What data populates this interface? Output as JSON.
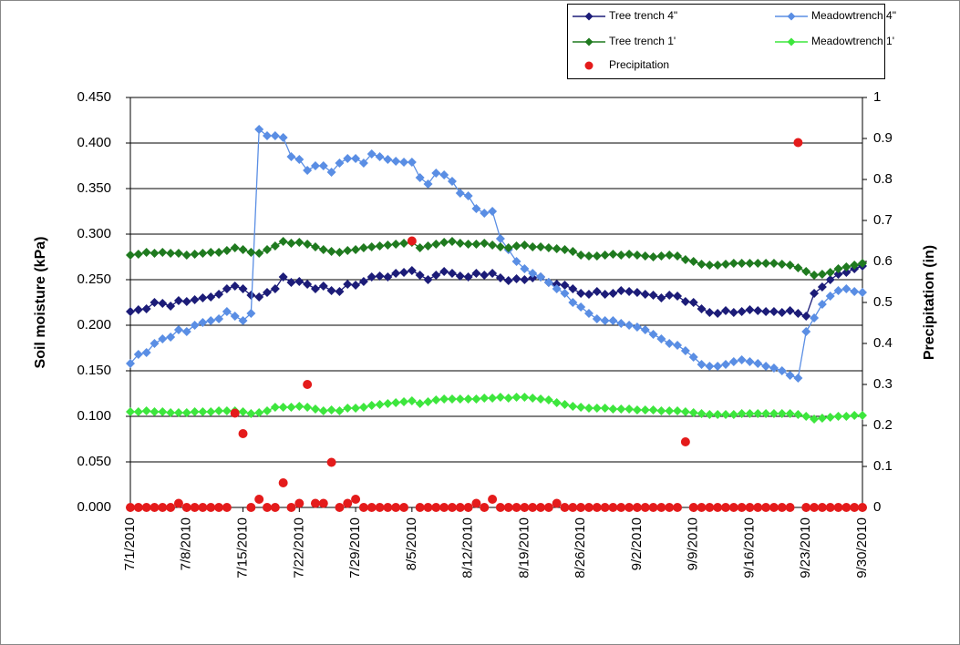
{
  "chart_data": {
    "type": "line",
    "y_label": "Soil moisture (kPa)",
    "y2_label": "Precipitation (in)",
    "categories": [
      "7/1/2010",
      null,
      null,
      null,
      null,
      null,
      null,
      "7/8/2010",
      null,
      null,
      null,
      null,
      null,
      null,
      "7/15/2010",
      null,
      null,
      null,
      null,
      null,
      null,
      "7/22/2010",
      null,
      null,
      null,
      null,
      null,
      null,
      "7/29/2010",
      null,
      null,
      null,
      null,
      null,
      null,
      "8/5/2010",
      null,
      null,
      null,
      null,
      null,
      null,
      "8/12/2010",
      null,
      null,
      null,
      null,
      null,
      null,
      "8/19/2010",
      null,
      null,
      null,
      null,
      null,
      null,
      "8/26/2010",
      null,
      null,
      null,
      null,
      null,
      null,
      "9/2/2010",
      null,
      null,
      null,
      null,
      null,
      null,
      "9/9/2010",
      null,
      null,
      null,
      null,
      null,
      null,
      "9/16/2010",
      null,
      null,
      null,
      null,
      null,
      null,
      "9/23/2010",
      null,
      null,
      null,
      null,
      null,
      null,
      "9/30/2010"
    ],
    "ylim": [
      0,
      0.45
    ],
    "yticks": [
      {
        "value": 0,
        "label": "0.000"
      },
      {
        "value": 0.05,
        "label": "0.050"
      },
      {
        "value": 0.1,
        "label": "0.100"
      },
      {
        "value": 0.15,
        "label": "0.150"
      },
      {
        "value": 0.2,
        "label": "0.200"
      },
      {
        "value": 0.25,
        "label": "0.250"
      },
      {
        "value": 0.3,
        "label": "0.300"
      },
      {
        "value": 0.35,
        "label": "0.350"
      },
      {
        "value": 0.4,
        "label": "0.400"
      },
      {
        "value": 0.45,
        "label": "0.450"
      }
    ],
    "y2lim": [
      0,
      1
    ],
    "y2ticks": [
      0,
      0.1,
      0.2,
      0.3,
      0.4,
      0.5,
      0.6,
      0.7,
      0.8,
      0.9,
      1
    ],
    "grid": true,
    "legend": "top-right",
    "series": [
      {
        "name": "Tree trench 4\"",
        "color": "#1c1c78",
        "mode": "lines+markers",
        "values": [
          0.215,
          0.217,
          0.218,
          0.225,
          0.224,
          0.221,
          0.227,
          0.226,
          0.228,
          0.23,
          0.231,
          0.234,
          0.24,
          0.243,
          0.24,
          0.233,
          0.231,
          0.236,
          0.24,
          0.253,
          0.247,
          0.248,
          0.245,
          0.24,
          0.243,
          0.238,
          0.237,
          0.245,
          0.244,
          0.248,
          0.253,
          0.254,
          0.253,
          0.257,
          0.258,
          0.26,
          0.255,
          0.25,
          0.255,
          0.259,
          0.257,
          0.254,
          0.253,
          0.257,
          0.255,
          0.257,
          0.252,
          0.249,
          0.251,
          0.25,
          0.252,
          0.253,
          0.247,
          0.245,
          0.244,
          0.24,
          0.235,
          0.234,
          0.237,
          0.234,
          0.235,
          0.238,
          0.237,
          0.236,
          0.234,
          0.233,
          0.23,
          0.233,
          0.232,
          0.226,
          0.225,
          0.218,
          0.214,
          0.213,
          0.216,
          0.214,
          0.215,
          0.217,
          0.216,
          0.215,
          0.215,
          0.214,
          0.216,
          0.213,
          0.21,
          0.235,
          0.242,
          0.25,
          0.256,
          0.258,
          0.262,
          0.265
        ]
      },
      {
        "name": "Meadowtrench 4\"",
        "color": "#5a8ee4",
        "mode": "lines+markers",
        "values": [
          0.158,
          0.168,
          0.17,
          0.18,
          0.185,
          0.187,
          0.195,
          0.193,
          0.2,
          0.203,
          0.205,
          0.207,
          0.215,
          0.21,
          0.205,
          0.213,
          0.415,
          0.408,
          0.408,
          0.406,
          0.385,
          0.382,
          0.37,
          0.375,
          0.375,
          0.368,
          0.378,
          0.383,
          0.383,
          0.378,
          0.388,
          0.385,
          0.382,
          0.38,
          0.379,
          0.379,
          0.362,
          0.355,
          0.367,
          0.365,
          0.358,
          0.345,
          0.342,
          0.328,
          0.323,
          0.325,
          0.295,
          0.283,
          0.27,
          0.262,
          0.257,
          0.253,
          0.247,
          0.24,
          0.235,
          0.225,
          0.22,
          0.213,
          0.207,
          0.205,
          0.205,
          0.202,
          0.2,
          0.198,
          0.195,
          0.19,
          0.185,
          0.18,
          0.178,
          0.172,
          0.165,
          0.157,
          0.155,
          0.155,
          0.157,
          0.16,
          0.162,
          0.16,
          0.158,
          0.155,
          0.153,
          0.15,
          0.145,
          0.142,
          0.193,
          0.208,
          0.223,
          0.232,
          0.238,
          0.24,
          0.237,
          0.236
        ]
      },
      {
        "name": "Tree trench 1'",
        "color": "#1f7a1f",
        "mode": "lines+markers",
        "values": [
          0.277,
          0.278,
          0.28,
          0.279,
          0.28,
          0.279,
          0.279,
          0.277,
          0.278,
          0.279,
          0.28,
          0.28,
          0.282,
          0.285,
          0.283,
          0.28,
          0.279,
          0.283,
          0.287,
          0.292,
          0.29,
          0.291,
          0.289,
          0.286,
          0.283,
          0.281,
          0.28,
          0.282,
          0.283,
          0.285,
          0.286,
          0.287,
          0.288,
          0.289,
          0.29,
          0.291,
          0.285,
          0.287,
          0.289,
          0.291,
          0.292,
          0.29,
          0.289,
          0.289,
          0.29,
          0.288,
          0.286,
          0.285,
          0.287,
          0.288,
          0.286,
          0.286,
          0.285,
          0.284,
          0.283,
          0.281,
          0.277,
          0.276,
          0.276,
          0.277,
          0.278,
          0.277,
          0.278,
          0.277,
          0.276,
          0.275,
          0.276,
          0.277,
          0.276,
          0.272,
          0.27,
          0.267,
          0.266,
          0.266,
          0.267,
          0.268,
          0.268,
          0.268,
          0.268,
          0.268,
          0.268,
          0.267,
          0.266,
          0.263,
          0.259,
          0.255,
          0.256,
          0.258,
          0.262,
          0.264,
          0.266,
          0.268
        ]
      },
      {
        "name": "Meadowtrench 1'",
        "color": "#3de63d",
        "mode": "lines+markers",
        "values": [
          0.105,
          0.105,
          0.106,
          0.105,
          0.105,
          0.104,
          0.104,
          0.104,
          0.105,
          0.105,
          0.105,
          0.106,
          0.106,
          0.106,
          0.105,
          0.103,
          0.104,
          0.106,
          0.11,
          0.11,
          0.11,
          0.111,
          0.11,
          0.108,
          0.106,
          0.107,
          0.106,
          0.109,
          0.109,
          0.11,
          0.112,
          0.113,
          0.114,
          0.115,
          0.116,
          0.117,
          0.114,
          0.116,
          0.118,
          0.119,
          0.119,
          0.119,
          0.119,
          0.119,
          0.12,
          0.12,
          0.121,
          0.12,
          0.121,
          0.121,
          0.12,
          0.119,
          0.118,
          0.115,
          0.113,
          0.111,
          0.11,
          0.109,
          0.109,
          0.109,
          0.108,
          0.108,
          0.108,
          0.107,
          0.107,
          0.107,
          0.106,
          0.106,
          0.106,
          0.105,
          0.104,
          0.103,
          0.102,
          0.102,
          0.102,
          0.102,
          0.103,
          0.103,
          0.103,
          0.103,
          0.103,
          0.103,
          0.103,
          0.102,
          0.1,
          0.097,
          0.098,
          0.099,
          0.1,
          0.1,
          0.101,
          0.101
        ]
      },
      {
        "name": "Precipitation",
        "color": "#e41b1b",
        "mode": "markers",
        "axis": "y2",
        "values": [
          0,
          0,
          0,
          0,
          0,
          0,
          0.01,
          0,
          0,
          0,
          0,
          0,
          0,
          0.23,
          0.18,
          0,
          0.02,
          0,
          0,
          0.06,
          0,
          0.01,
          0.3,
          0.01,
          0.01,
          0.11,
          0,
          0.01,
          0.02,
          0,
          0,
          0,
          0,
          0,
          0,
          0.65,
          0,
          0,
          0,
          0,
          0,
          0,
          0,
          0.01,
          0,
          0.02,
          0,
          0,
          0,
          0,
          0,
          0,
          0,
          0.01,
          0,
          0,
          0,
          0,
          0,
          0,
          0,
          0,
          0,
          0,
          0,
          0,
          0,
          0,
          0,
          0.16,
          0,
          0,
          0,
          0,
          0,
          0,
          0,
          0,
          0,
          0,
          0,
          0,
          0,
          0.89,
          0,
          0,
          0,
          0,
          0,
          0,
          0,
          0
        ]
      }
    ]
  }
}
